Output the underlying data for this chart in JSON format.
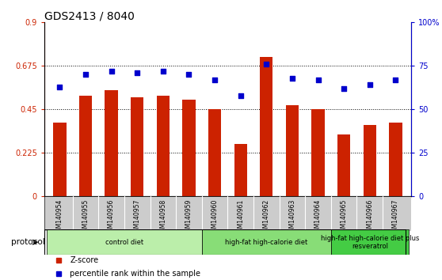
{
  "title": "GDS2413 / 8040",
  "samples": [
    "GSM140954",
    "GSM140955",
    "GSM140956",
    "GSM140957",
    "GSM140958",
    "GSM140959",
    "GSM140960",
    "GSM140961",
    "GSM140962",
    "GSM140963",
    "GSM140964",
    "GSM140965",
    "GSM140966",
    "GSM140967"
  ],
  "zscore": [
    0.38,
    0.52,
    0.55,
    0.51,
    0.52,
    0.5,
    0.45,
    0.27,
    0.72,
    0.47,
    0.45,
    0.32,
    0.37,
    0.38
  ],
  "percentile": [
    63,
    70,
    72,
    71,
    72,
    70,
    67,
    58,
    76,
    68,
    67,
    62,
    64,
    67
  ],
  "bar_color": "#cc2200",
  "dot_color": "#0000cc",
  "ylim_left": [
    0,
    0.9
  ],
  "ylim_right": [
    0,
    100
  ],
  "yticks_left": [
    0,
    0.225,
    0.45,
    0.675,
    0.9
  ],
  "ytick_labels_left": [
    "0",
    "0.225",
    "0.45",
    "0.675",
    "0.9"
  ],
  "yticks_right": [
    0,
    25,
    50,
    75,
    100
  ],
  "ytick_labels_right": [
    "0",
    "25",
    "50",
    "75",
    "100%"
  ],
  "hlines": [
    0.225,
    0.45,
    0.675
  ],
  "groups": [
    {
      "label": "control diet",
      "start": 0,
      "end": 5,
      "color": "#bbeeaa"
    },
    {
      "label": "high-fat high-calorie diet",
      "start": 6,
      "end": 10,
      "color": "#88dd77"
    },
    {
      "label": "high-fat high-calorie diet plus\nresveratrol",
      "start": 11,
      "end": 13,
      "color": "#44cc44"
    }
  ],
  "protocol_label": "protocol",
  "legend_items": [
    {
      "label": "Z-score",
      "color": "#cc2200"
    },
    {
      "label": "percentile rank within the sample",
      "color": "#0000cc"
    }
  ],
  "xticklabel_bg": "#cccccc",
  "title_fontsize": 10,
  "tick_fontsize": 7,
  "label_fontsize": 7.5
}
